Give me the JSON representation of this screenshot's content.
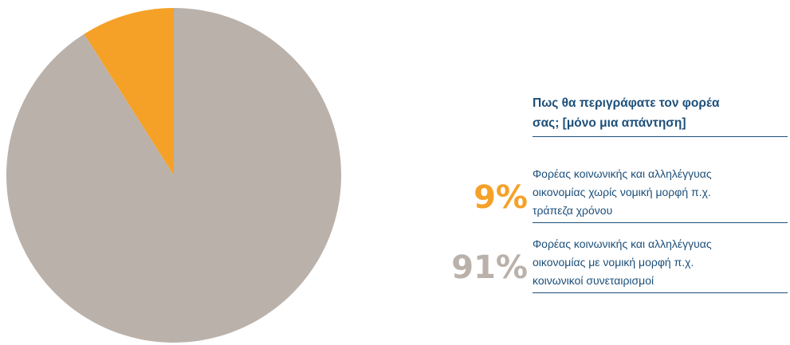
{
  "chart_data": {
    "type": "pie",
    "title": "Πως θα περιγράφατε τον φορέα σας; [μόνο μια απάντηση]",
    "series": [
      {
        "name": "",
        "values": [
          9,
          91
        ],
        "categories": [
          "Φορέας κοινωνικής και αλληλέγγυας οικονομίας χωρίς νομική μορφή π.χ. τράπεζα χρόνου",
          "Φορέας κοινωνικής και αλληλέγγυας οικονομίας με νομική μορφή π.χ. κοινωνικοί συνεταιρισμοί"
        ]
      }
    ],
    "slices": [
      {
        "value": 9,
        "label": "9%",
        "color": "#f5a128",
        "desc_lines": [
          "Φορέας κοινωνικής και αλληλέγγυας",
          "οικονομίας χωρίς νομική μορφή π.χ.",
          "τράπεζα χρόνου"
        ]
      },
      {
        "value": 91,
        "label": "91%",
        "color": "#bab1aa",
        "desc_lines": [
          "Φορέας κοινωνικής και αλληλέγγυας",
          "οικονομίας με νομική μορφή π.χ.",
          "κοινωνικοί συνεταιρισμοί"
        ]
      }
    ],
    "title_lines": [
      "Πως θα περιγράφατε τον φορέα",
      "σας; [μόνο μια απάντηση]"
    ],
    "start_angle_deg": 0,
    "direction": "counterclockwise",
    "legend_position": "right"
  }
}
